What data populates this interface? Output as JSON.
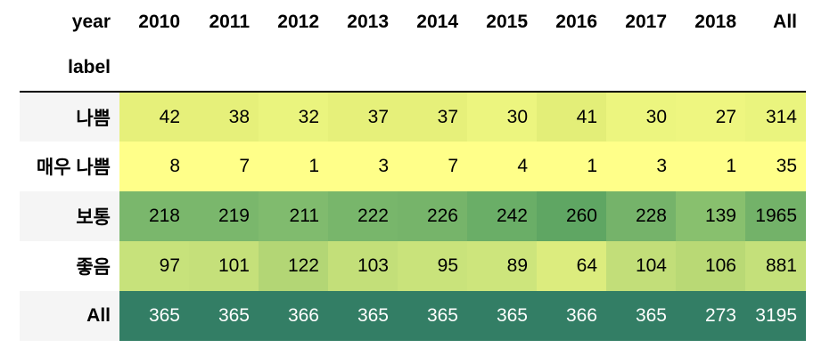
{
  "table": {
    "column_index_name": "year",
    "row_index_name": "label",
    "columns": [
      "2010",
      "2011",
      "2012",
      "2013",
      "2014",
      "2015",
      "2016",
      "2017",
      "2018",
      "All"
    ],
    "rows": [
      {
        "label": "나쁨",
        "values": [
          "42",
          "38",
          "32",
          "37",
          "37",
          "30",
          "41",
          "30",
          "27",
          "314"
        ],
        "colors": [
          "#e6f07a",
          "#e6f07a",
          "#eaf47e",
          "#e6f07a",
          "#e6f07a",
          "#ecf57f",
          "#e3ee78",
          "#ecf57f",
          "#eef680",
          "#eaf47e"
        ]
      },
      {
        "label": "매우 나쁨",
        "values": [
          "8",
          "7",
          "1",
          "3",
          "7",
          "4",
          "1",
          "3",
          "1",
          "35"
        ],
        "colors": [
          "#ffff89",
          "#ffff89",
          "#ffff89",
          "#ffff89",
          "#ffff89",
          "#ffff89",
          "#ffff89",
          "#ffff89",
          "#ffff89",
          "#ffff89"
        ]
      },
      {
        "label": "보통",
        "values": [
          "218",
          "219",
          "211",
          "222",
          "226",
          "242",
          "260",
          "228",
          "139",
          "1965"
        ],
        "colors": [
          "#7ab76c",
          "#7ab76c",
          "#80bb6e",
          "#78b66b",
          "#76b46a",
          "#6aae67",
          "#5fa663",
          "#75b36a",
          "#88c06e",
          "#73b269"
        ]
      },
      {
        "label": "좋음",
        "values": [
          "97",
          "101",
          "122",
          "103",
          "95",
          "89",
          "64",
          "104",
          "106",
          "881"
        ],
        "colors": [
          "#c7e27b",
          "#c5e07a",
          "#b3d675",
          "#c3df79",
          "#c9e37b",
          "#cde57c",
          "#dcec7e",
          "#c2de79",
          "#b9d975",
          "#c4e07a"
        ]
      },
      {
        "label": "All",
        "values": [
          "365",
          "365",
          "366",
          "365",
          "365",
          "365",
          "366",
          "365",
          "273",
          "3195"
        ],
        "colors": [
          "#337e65",
          "#337e65",
          "#337e65",
          "#337e65",
          "#337e65",
          "#337e65",
          "#337e65",
          "#337e65",
          "#337e65",
          "#337e65"
        ],
        "text_color": "#ffffff"
      }
    ]
  }
}
